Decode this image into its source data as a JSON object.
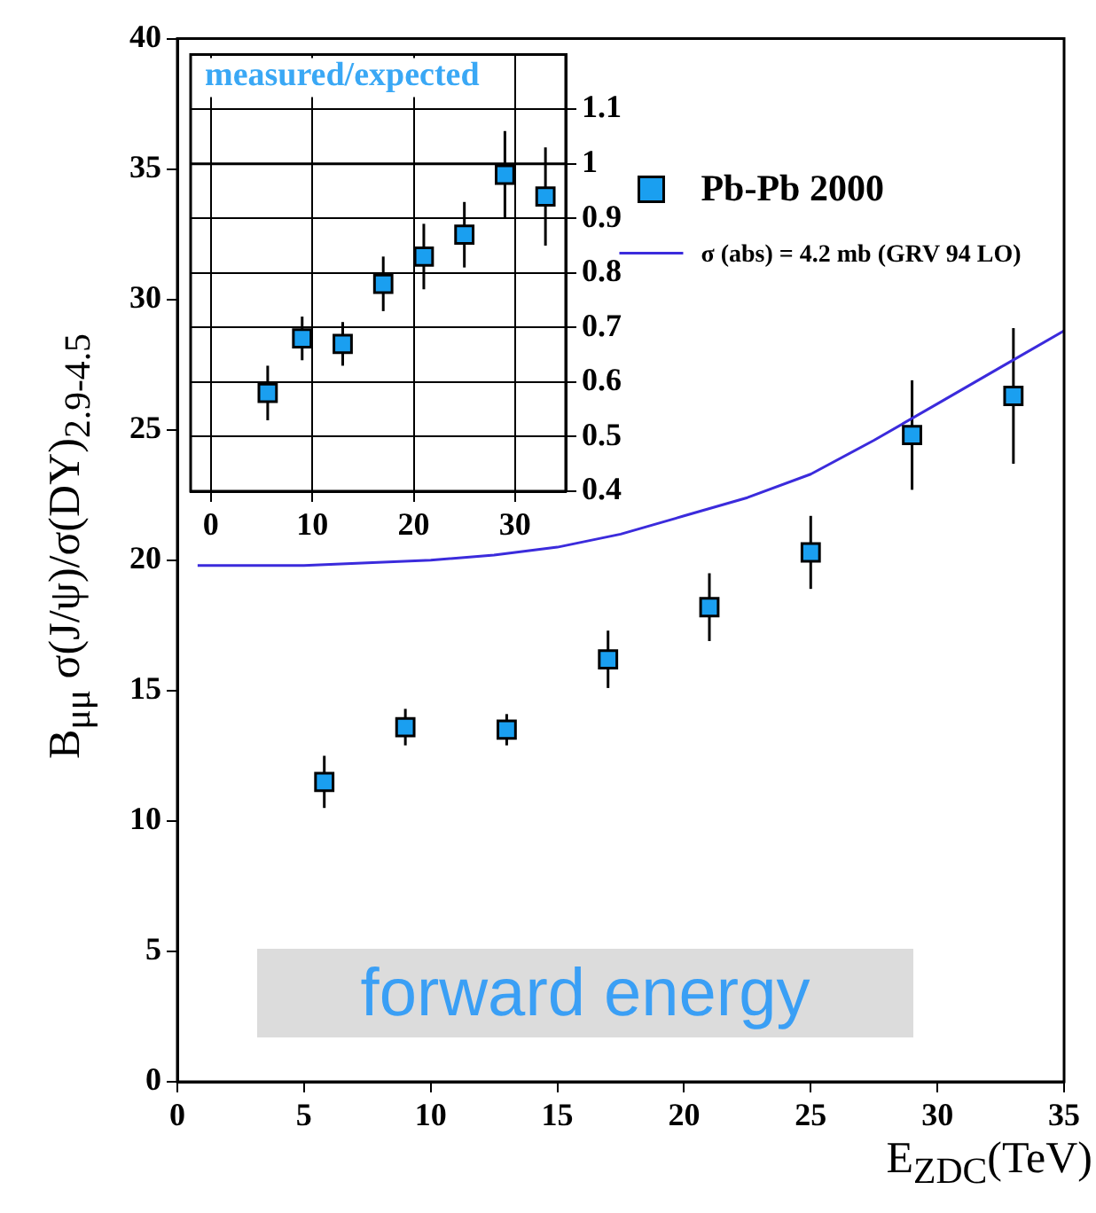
{
  "chart_data": [
    {
      "type": "scatter",
      "xlabel": "E$_{ZDC}$(TeV)",
      "ylabel": "B$_{μμ}$ σ(J/ψ)/σ(DY)$_{2.9-4.5}$",
      "xlim": [
        0,
        35
      ],
      "xticks": [
        0,
        5,
        10,
        15,
        20,
        25,
        30,
        35
      ],
      "ylim": [
        0,
        40
      ],
      "yticks": [
        0,
        5,
        10,
        15,
        20,
        25,
        30,
        35,
        40
      ],
      "grid": false,
      "legend": "top right",
      "marker": "square",
      "annotations": [
        "forward energy"
      ],
      "series": [
        {
          "name": "Pb-Pb 2000",
          "type": "scatter",
          "color": "#1a9ff0",
          "x": [
            5.8,
            9,
            13,
            17,
            21,
            25,
            29,
            33
          ],
          "values": [
            11.5,
            13.6,
            13.5,
            16.2,
            18.2,
            20.3,
            24.8,
            26.3
          ],
          "errors": [
            1.0,
            0.7,
            0.6,
            1.1,
            1.3,
            1.4,
            2.1,
            2.6
          ]
        },
        {
          "name": "σ (abs) = 4.2 mb (GRV 94 LO)",
          "type": "line",
          "color": "#3b2bdc",
          "marker": "none",
          "x": [
            0.8,
            5,
            10,
            12.5,
            15,
            17.5,
            20,
            22.5,
            25,
            27.5,
            30,
            32.5,
            35
          ],
          "values": [
            19.8,
            19.8,
            20.0,
            20.2,
            20.5,
            21.0,
            21.7,
            22.4,
            23.3,
            24.6,
            26.0,
            27.4,
            28.8
          ]
        }
      ]
    },
    {
      "type": "scatter",
      "title": "measured/expected",
      "xlim": [
        -2,
        35
      ],
      "xticks": [
        0,
        10,
        20,
        30
      ],
      "ylim": [
        0.4,
        1.2
      ],
      "yticks": [
        0.4,
        0.5,
        0.6,
        0.7,
        0.8,
        0.9,
        1,
        1.1
      ],
      "grid": true,
      "marker": "square",
      "ref_lines": [
        {
          "axis": "y",
          "value": 1
        }
      ],
      "series": [
        {
          "type": "scatter",
          "color": "#1a9ff0",
          "x": [
            5.6,
            9,
            13,
            17,
            21,
            25,
            29,
            33
          ],
          "values": [
            0.58,
            0.68,
            0.67,
            0.78,
            0.83,
            0.87,
            0.98,
            0.94
          ],
          "errors": [
            0.05,
            0.04,
            0.04,
            0.05,
            0.06,
            0.06,
            0.08,
            0.09
          ]
        }
      ]
    }
  ]
}
